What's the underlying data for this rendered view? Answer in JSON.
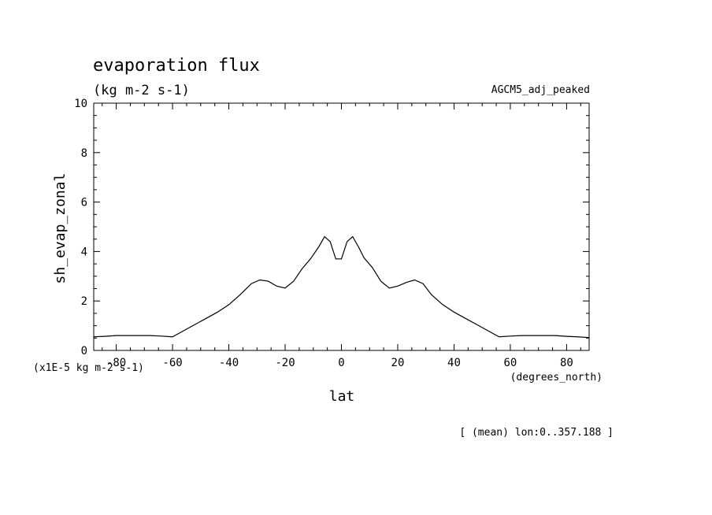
{
  "chart_data": {
    "type": "line",
    "title": "evaporation flux",
    "subtitle": "(kg m-2 s-1)",
    "dataset_label": "AGCM5_adj_peaked",
    "xlabel": "lat",
    "ylabel": "sh_evap_zonal",
    "x_units": "(degrees_north)",
    "y_scale_note": "(x1E-5 kg m-2 s-1)",
    "footnote": "[ (mean) lon:0..357.188 ]",
    "xlim": [
      -88,
      88
    ],
    "ylim": [
      0,
      10
    ],
    "x_ticks": [
      -80,
      -60,
      -40,
      -20,
      0,
      20,
      40,
      60,
      80
    ],
    "x_tick_labels": [
      "-80",
      "-60",
      "-40",
      "-20",
      "0",
      "20",
      "40",
      "60",
      "80"
    ],
    "y_ticks": [
      0,
      2,
      4,
      6,
      8,
      10
    ],
    "y_tick_labels": [
      "0",
      "2",
      "4",
      "6",
      "8",
      "10"
    ],
    "grid": false,
    "series": [
      {
        "x": [
          -88,
          -84,
          -80,
          -76,
          -72,
          -68,
          -64,
          -60,
          -56,
          -52,
          -48,
          -44,
          -40,
          -36,
          -32,
          -29,
          -26,
          -23,
          -20,
          -17,
          -14,
          -11,
          -8,
          -6,
          -4,
          -2,
          0,
          2,
          4,
          6,
          8,
          11,
          14,
          17,
          20,
          23,
          26,
          29,
          32,
          36,
          40,
          44,
          48,
          52,
          56,
          60,
          64,
          68,
          72,
          76,
          80,
          84,
          88
        ],
        "y": [
          0.55,
          0.57,
          0.6,
          0.6,
          0.6,
          0.6,
          0.58,
          0.55,
          0.8,
          1.05,
          1.3,
          1.55,
          1.85,
          2.25,
          2.7,
          2.85,
          2.8,
          2.6,
          2.52,
          2.8,
          3.3,
          3.7,
          4.2,
          4.6,
          4.4,
          3.7,
          3.7,
          4.4,
          4.6,
          4.2,
          3.75,
          3.35,
          2.8,
          2.52,
          2.6,
          2.75,
          2.85,
          2.7,
          2.25,
          1.85,
          1.55,
          1.3,
          1.05,
          0.8,
          0.55,
          0.58,
          0.6,
          0.6,
          0.6,
          0.6,
          0.57,
          0.55,
          0.52
        ]
      }
    ]
  }
}
